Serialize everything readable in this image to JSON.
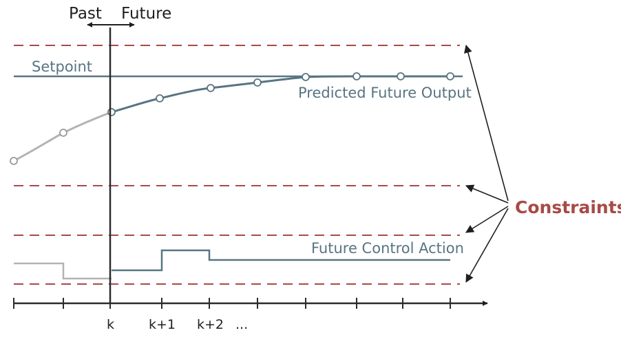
{
  "header": {
    "past_label": "Past",
    "future_label": "Future"
  },
  "labels": {
    "setpoint": "Setpoint",
    "predicted_output": "Predicted Future Output",
    "control_action": "Future Control Action",
    "constraints": "Constraints"
  },
  "ticks": [
    "k",
    "k+1",
    "k+2",
    "..."
  ],
  "colors": {
    "axis": "#2a2a2a",
    "past_curve": "#b3b3b3",
    "future_curve": "#587482",
    "setpoint_line": "#587482",
    "constraint_line": "#a84a46",
    "constraints_text": "#a84a46"
  }
}
